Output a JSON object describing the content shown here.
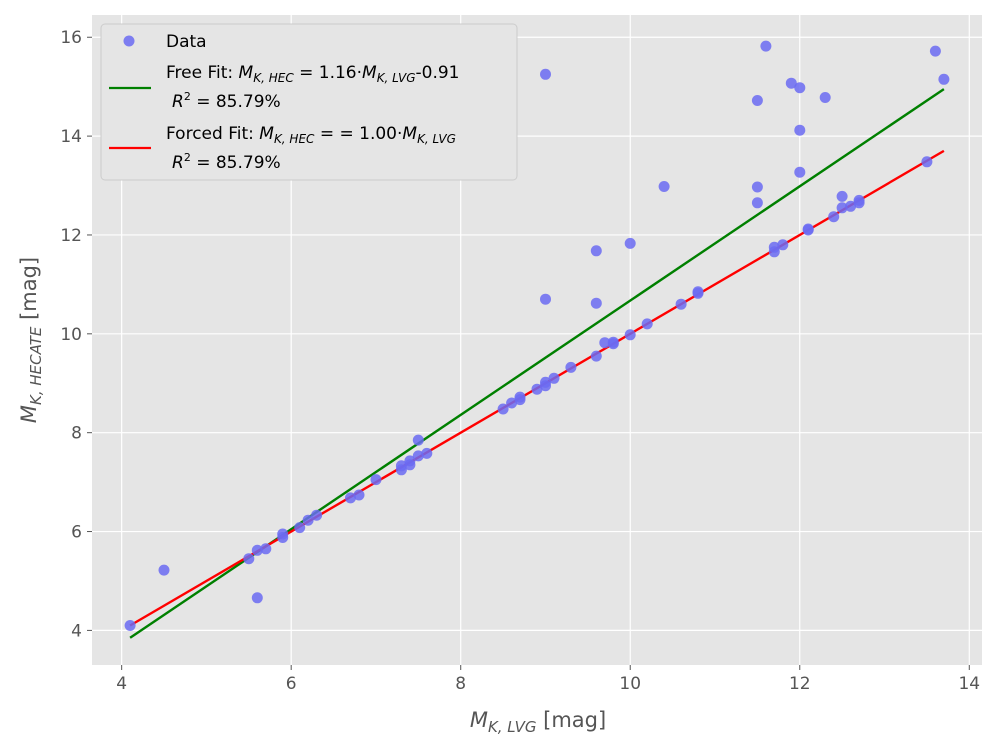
{
  "chart_data": {
    "type": "scatter",
    "xlabel": "M_K,LVG [mag]",
    "ylabel": "M_K,HECATE [mag]",
    "xlim": [
      3.65,
      14.15
    ],
    "ylim": [
      3.3,
      16.45
    ],
    "x_ticks": [
      4,
      6,
      8,
      10,
      12,
      14
    ],
    "y_ticks": [
      4,
      6,
      8,
      10,
      12,
      14,
      16
    ],
    "grid": true,
    "legend_position": "top-left",
    "colors": {
      "background": "#e5e5e5",
      "grid": "#ffffff",
      "data": "#6b6bf2",
      "free_fit": "#008000",
      "forced_fit": "#ff0000",
      "tick_text": "#555555"
    },
    "series": [
      {
        "name": "Data",
        "kind": "scatter",
        "points": [
          [
            4.1,
            4.1
          ],
          [
            4.5,
            5.22
          ],
          [
            5.5,
            5.45
          ],
          [
            5.6,
            5.62
          ],
          [
            5.6,
            4.66
          ],
          [
            5.7,
            5.65
          ],
          [
            5.9,
            5.88
          ],
          [
            5.9,
            5.95
          ],
          [
            6.1,
            6.08
          ],
          [
            6.2,
            6.23
          ],
          [
            6.3,
            6.33
          ],
          [
            6.7,
            6.68
          ],
          [
            6.8,
            6.74
          ],
          [
            7.0,
            7.05
          ],
          [
            7.3,
            7.25
          ],
          [
            7.3,
            7.33
          ],
          [
            7.4,
            7.35
          ],
          [
            7.4,
            7.43
          ],
          [
            7.5,
            7.85
          ],
          [
            7.5,
            7.53
          ],
          [
            7.6,
            7.58
          ],
          [
            8.5,
            8.48
          ],
          [
            8.6,
            8.6
          ],
          [
            8.7,
            8.67
          ],
          [
            8.7,
            8.72
          ],
          [
            8.9,
            8.88
          ],
          [
            9.0,
            8.95
          ],
          [
            9.0,
            9.02
          ],
          [
            9.0,
            10.7
          ],
          [
            9.0,
            15.25
          ],
          [
            9.1,
            9.1
          ],
          [
            9.3,
            9.32
          ],
          [
            9.6,
            9.55
          ],
          [
            9.6,
            10.62
          ],
          [
            9.6,
            11.68
          ],
          [
            9.7,
            9.82
          ],
          [
            9.8,
            9.8
          ],
          [
            9.8,
            9.83
          ],
          [
            10.0,
            9.98
          ],
          [
            10.0,
            11.83
          ],
          [
            10.2,
            10.2
          ],
          [
            10.4,
            12.98
          ],
          [
            10.6,
            10.6
          ],
          [
            10.8,
            10.82
          ],
          [
            10.8,
            10.85
          ],
          [
            11.5,
            14.72
          ],
          [
            11.5,
            12.97
          ],
          [
            11.5,
            12.65
          ],
          [
            11.6,
            15.82
          ],
          [
            11.7,
            11.75
          ],
          [
            11.7,
            11.66
          ],
          [
            11.8,
            11.8
          ],
          [
            11.9,
            15.07
          ],
          [
            12.0,
            14.98
          ],
          [
            12.0,
            14.12
          ],
          [
            12.0,
            13.27
          ],
          [
            12.1,
            12.1
          ],
          [
            12.1,
            12.12
          ],
          [
            12.3,
            14.78
          ],
          [
            12.4,
            12.37
          ],
          [
            12.5,
            12.78
          ],
          [
            12.5,
            12.55
          ],
          [
            12.6,
            12.58
          ],
          [
            12.7,
            12.65
          ],
          [
            12.7,
            12.7
          ],
          [
            13.5,
            13.48
          ],
          [
            13.6,
            15.72
          ],
          [
            13.7,
            15.15
          ]
        ]
      },
      {
        "name": "Free Fit",
        "kind": "line",
        "x": [
          4.1,
          13.7
        ],
        "y": [
          3.85,
          14.95
        ]
      },
      {
        "name": "Forced Fit",
        "kind": "line",
        "x": [
          4.1,
          13.7
        ],
        "y": [
          4.1,
          13.7
        ]
      }
    ],
    "legend": {
      "data_label": "Data",
      "free_prefix": "Free Fit: ",
      "free_eq_lhs": "M",
      "free_eq_lhs_sub": "K, HEC",
      "free_eq_mid": " = 1.16·",
      "free_eq_rhs": "M",
      "free_eq_rhs_sub": "K, LVG",
      "free_eq_tail": "-0.91",
      "free_r2_var": "R",
      "free_r2_sup": "2",
      "free_r2_val": " = 85.79%",
      "forced_prefix": "Forced Fit: ",
      "forced_eq_lhs": "M",
      "forced_eq_lhs_sub": "K, HEC",
      "forced_eq_mid": " =  = 1.00·",
      "forced_eq_rhs": "M",
      "forced_eq_rhs_sub": "K, LVG",
      "forced_r2_var": "R",
      "forced_r2_sup": "2",
      "forced_r2_val": " = 85.79%"
    },
    "axis_labels": {
      "x_main": "M",
      "x_sub": "K, LVG",
      "x_unit": " [mag]",
      "y_main": "M",
      "y_sub": "K, HECATE",
      "y_unit": " [mag]"
    }
  }
}
